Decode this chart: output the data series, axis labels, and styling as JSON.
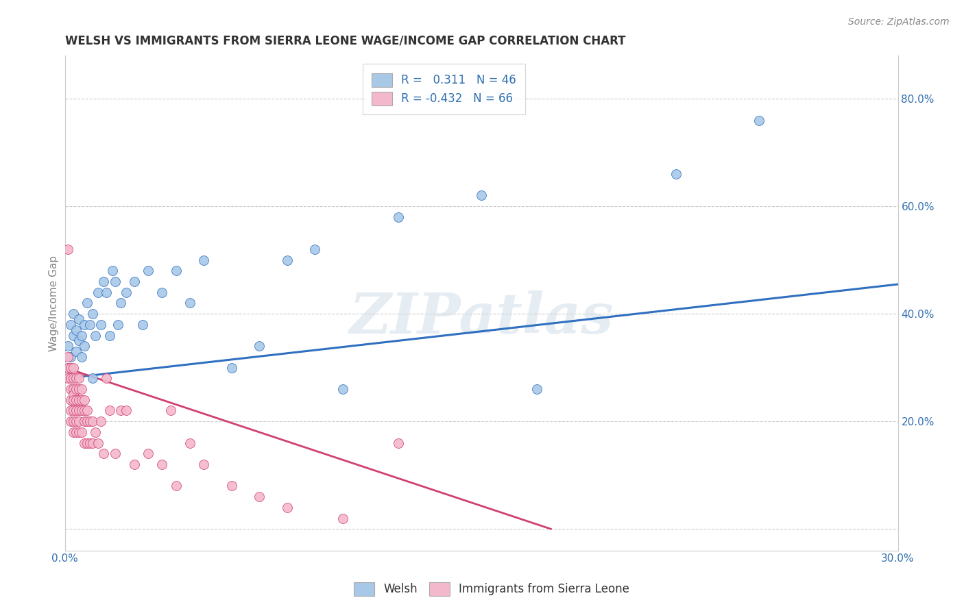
{
  "title": "WELSH VS IMMIGRANTS FROM SIERRA LEONE WAGE/INCOME GAP CORRELATION CHART",
  "source": "Source: ZipAtlas.com",
  "ylabel": "Wage/Income Gap",
  "watermark": "ZIPatlas",
  "legend1_label": "Welsh",
  "legend2_label": "Immigrants from Sierra Leone",
  "R1": 0.311,
  "N1": 46,
  "R2": -0.432,
  "N2": 66,
  "color_blue": "#a8c8e8",
  "color_pink": "#f4b8cc",
  "line_blue": "#3070c0",
  "line_pink": "#d04070",
  "xmin": 0.0,
  "xmax": 0.3,
  "ymin": -0.04,
  "ymax": 0.88,
  "yticks": [
    0.0,
    0.2,
    0.4,
    0.6,
    0.8
  ],
  "ytick_labels": [
    "",
    "20.0%",
    "40.0%",
    "60.0%",
    "80.0%"
  ],
  "xticks": [
    0.0,
    0.05,
    0.1,
    0.15,
    0.2,
    0.25,
    0.3
  ],
  "xtick_labels": [
    "0.0%",
    "",
    "",
    "",
    "",
    "",
    "30.0%"
  ],
  "blue_x": [
    0.001,
    0.001,
    0.002,
    0.002,
    0.003,
    0.003,
    0.004,
    0.004,
    0.005,
    0.005,
    0.006,
    0.006,
    0.007,
    0.007,
    0.008,
    0.009,
    0.01,
    0.01,
    0.011,
    0.012,
    0.013,
    0.014,
    0.015,
    0.016,
    0.017,
    0.018,
    0.019,
    0.02,
    0.022,
    0.025,
    0.028,
    0.03,
    0.035,
    0.04,
    0.045,
    0.05,
    0.06,
    0.07,
    0.08,
    0.09,
    0.1,
    0.12,
    0.15,
    0.17,
    0.22,
    0.25
  ],
  "blue_y": [
    0.3,
    0.34,
    0.38,
    0.32,
    0.36,
    0.4,
    0.33,
    0.37,
    0.35,
    0.39,
    0.32,
    0.36,
    0.34,
    0.38,
    0.42,
    0.38,
    0.4,
    0.28,
    0.36,
    0.44,
    0.38,
    0.46,
    0.44,
    0.36,
    0.48,
    0.46,
    0.38,
    0.42,
    0.44,
    0.46,
    0.38,
    0.48,
    0.44,
    0.48,
    0.42,
    0.5,
    0.3,
    0.34,
    0.5,
    0.52,
    0.26,
    0.58,
    0.62,
    0.26,
    0.66,
    0.76
  ],
  "pink_x": [
    0.001,
    0.001,
    0.001,
    0.001,
    0.002,
    0.002,
    0.002,
    0.002,
    0.002,
    0.002,
    0.003,
    0.003,
    0.003,
    0.003,
    0.003,
    0.003,
    0.003,
    0.003,
    0.004,
    0.004,
    0.004,
    0.004,
    0.004,
    0.004,
    0.005,
    0.005,
    0.005,
    0.005,
    0.005,
    0.005,
    0.006,
    0.006,
    0.006,
    0.006,
    0.007,
    0.007,
    0.007,
    0.007,
    0.008,
    0.008,
    0.008,
    0.009,
    0.009,
    0.01,
    0.01,
    0.011,
    0.012,
    0.013,
    0.014,
    0.015,
    0.016,
    0.018,
    0.02,
    0.022,
    0.025,
    0.03,
    0.035,
    0.038,
    0.04,
    0.045,
    0.05,
    0.06,
    0.07,
    0.08,
    0.1,
    0.12
  ],
  "pink_y": [
    0.52,
    0.32,
    0.3,
    0.28,
    0.3,
    0.28,
    0.26,
    0.24,
    0.22,
    0.2,
    0.3,
    0.28,
    0.26,
    0.25,
    0.24,
    0.22,
    0.2,
    0.18,
    0.28,
    0.26,
    0.24,
    0.22,
    0.2,
    0.18,
    0.28,
    0.26,
    0.24,
    0.22,
    0.2,
    0.18,
    0.26,
    0.24,
    0.22,
    0.18,
    0.24,
    0.22,
    0.2,
    0.16,
    0.22,
    0.2,
    0.16,
    0.2,
    0.16,
    0.2,
    0.16,
    0.18,
    0.16,
    0.2,
    0.14,
    0.28,
    0.22,
    0.14,
    0.22,
    0.22,
    0.12,
    0.14,
    0.12,
    0.22,
    0.08,
    0.16,
    0.12,
    0.08,
    0.06,
    0.04,
    0.02,
    0.16
  ],
  "blue_trend_x": [
    0.0,
    0.3
  ],
  "blue_trend_y": [
    0.28,
    0.455
  ],
  "pink_trend_x": [
    0.0,
    0.175
  ],
  "pink_trend_y": [
    0.3,
    0.0
  ]
}
